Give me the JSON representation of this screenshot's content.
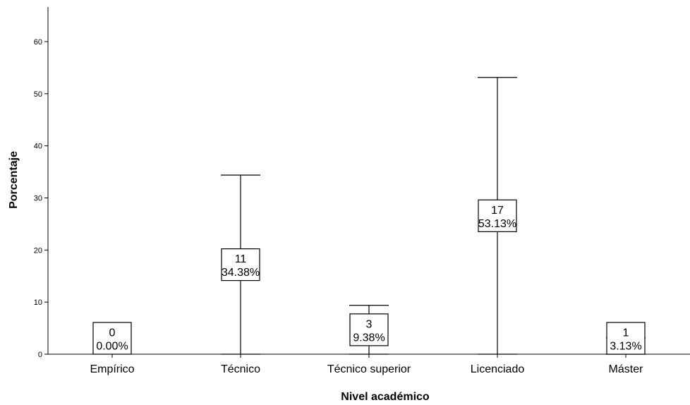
{
  "chart_data": {
    "type": "bar",
    "xlabel": "Nivel académico",
    "ylabel": "Porcentaje",
    "ylim": [
      0,
      66
    ],
    "yticks": [
      0,
      10,
      20,
      30,
      40,
      50,
      60
    ],
    "grid": false,
    "categories": [
      "Empírico",
      "Técnico",
      "Técnico superior",
      "Licenciado",
      "Máster"
    ],
    "counts": [
      "0",
      "11",
      "3",
      "17",
      "1"
    ],
    "percent_labels": [
      "0.00%",
      "34.38%",
      "9.38%",
      "53.13%",
      "3.13%"
    ],
    "values": [
      0.0,
      34.38,
      9.38,
      53.13,
      3.13
    ]
  }
}
